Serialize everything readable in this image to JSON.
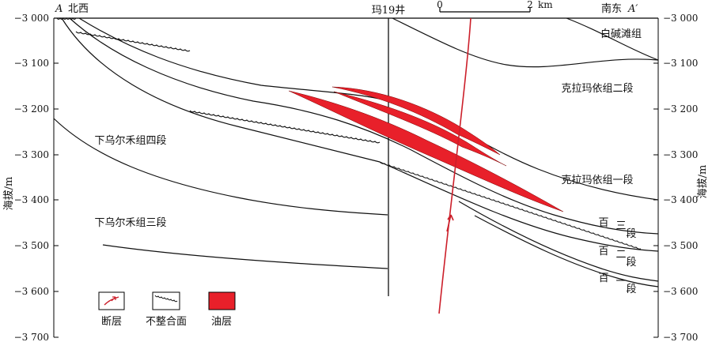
{
  "endpoints": {
    "left_letter": "A",
    "left_dir": "北西",
    "right_dir": "南东",
    "right_letter": "A′"
  },
  "well_name": "玛19井",
  "scalebar": {
    "start": "0",
    "end": "2",
    "unit": "km"
  },
  "y_axis": {
    "label": "海拔/m",
    "ticks": [
      "−3 000",
      "−3 100",
      "−3 200",
      "−3 300",
      "−3 400",
      "−3 500",
      "−3 600",
      "−3 700"
    ]
  },
  "formations": {
    "baijiantan": "白碱滩组",
    "kelamayi_2": "克拉玛依组二段",
    "kelamayi_1": "克拉玛依组一段",
    "bai3": [
      "百",
      "三",
      "段"
    ],
    "bai2": [
      "百",
      "二",
      "段"
    ],
    "bai1": [
      "百",
      "一",
      "段"
    ],
    "wuerhe_4": "下乌尔禾组四段",
    "wuerhe_3": "下乌尔禾组三段"
  },
  "legend": {
    "fault": "断层",
    "unconformity": "不整合面",
    "oil_layer": "油层"
  },
  "colors": {
    "oil": "#e8202a",
    "fault": "#cc1f2a",
    "line": "#111111",
    "frame": "#000000"
  }
}
